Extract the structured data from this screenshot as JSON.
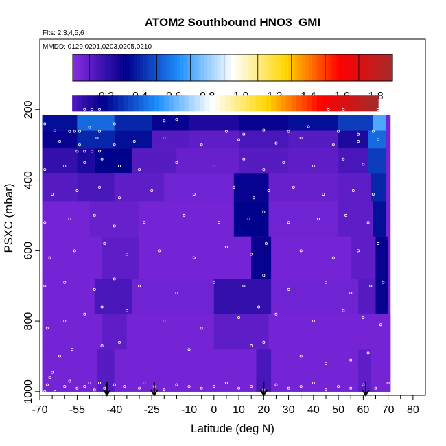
{
  "chart_data": {
    "type": "heatmap",
    "title": "ATOM2 Southbound HNO3_GMI",
    "subtitle_flights": "Flts: 2,3,4,5,6",
    "subtitle_dates": "MMDD: 0129,0201,0203,0205,0210",
    "xlabel": "Latitude (deg N)",
    "ylabel": "PSXC (mbar)",
    "xlim": [
      -70,
      85
    ],
    "ylim": [
      1010,
      0
    ],
    "x_ticks": [
      -70,
      -55,
      -40,
      -25,
      -10,
      0,
      10,
      20,
      30,
      40,
      50,
      60,
      70,
      80
    ],
    "x_tick_labels": [
      "-70",
      "-55",
      "-40",
      "-25",
      "-10",
      "0",
      "10",
      "20",
      "30",
      "40",
      "50",
      "60",
      "70",
      "80"
    ],
    "x_minor_ticks": [
      -65,
      -60,
      -50,
      -45,
      -35,
      -30,
      -20,
      -15,
      -5,
      5,
      15,
      25,
      35,
      45,
      55,
      65,
      75
    ],
    "y_ticks": [
      200,
      400,
      600,
      800,
      1000
    ],
    "y_tick_labels": [
      "200",
      "400",
      "600",
      "800",
      "1000"
    ],
    "colorbar": {
      "range": [
        0,
        1.9
      ],
      "ticks": [
        0.2,
        0.4,
        0.6,
        0.8,
        1.0,
        1.2,
        1.4,
        1.6,
        1.8
      ],
      "tick_labels": [
        "0.2",
        "0.4",
        "0.6",
        "0.8",
        "1.0",
        "1.2",
        "1.4",
        "1.6",
        "1.8"
      ],
      "colors": [
        "#8a2be2",
        "#00008b",
        "#1e90ff",
        "#ffffff",
        "#ffd700",
        "#ff0000",
        "#a52a2a"
      ]
    },
    "arrows_lat": [
      -43,
      -24,
      20,
      61
    ],
    "data_extent": {
      "lat_min": -69,
      "lat_max": 71,
      "p_top": 215,
      "p_bottom": 1000
    },
    "cells": [
      {
        "lat": [
          -69,
          -55
        ],
        "p": [
          215,
          260
        ],
        "v": 0.35
      },
      {
        "lat": [
          -55,
          -40
        ],
        "p": [
          215,
          260
        ],
        "v": 0.55
      },
      {
        "lat": [
          -40,
          -25
        ],
        "p": [
          215,
          260
        ],
        "v": 0.4
      },
      {
        "lat": [
          -25,
          -10
        ],
        "p": [
          215,
          260
        ],
        "v": 0.3
      },
      {
        "lat": [
          -10,
          10
        ],
        "p": [
          215,
          260
        ],
        "v": 0.25
      },
      {
        "lat": [
          10,
          30
        ],
        "p": [
          215,
          260
        ],
        "v": 0.3
      },
      {
        "lat": [
          30,
          50
        ],
        "p": [
          215,
          260
        ],
        "v": 0.35
      },
      {
        "lat": [
          50,
          64
        ],
        "p": [
          215,
          260
        ],
        "v": 0.45
      },
      {
        "lat": [
          64,
          69
        ],
        "p": [
          215,
          260
        ],
        "v": 0.7
      },
      {
        "lat": [
          -69,
          -55
        ],
        "p": [
          260,
          310
        ],
        "v": 0.3
      },
      {
        "lat": [
          -55,
          -40
        ],
        "p": [
          260,
          310
        ],
        "v": 0.4
      },
      {
        "lat": [
          -40,
          -25
        ],
        "p": [
          260,
          310
        ],
        "v": 0.35
      },
      {
        "lat": [
          -25,
          -10
        ],
        "p": [
          260,
          310
        ],
        "v": 0.12
      },
      {
        "lat": [
          -10,
          10
        ],
        "p": [
          260,
          310
        ],
        "v": 0.1
      },
      {
        "lat": [
          10,
          30
        ],
        "p": [
          260,
          310
        ],
        "v": 0.15
      },
      {
        "lat": [
          30,
          50
        ],
        "p": [
          260,
          310
        ],
        "v": 0.12
      },
      {
        "lat": [
          50,
          62
        ],
        "p": [
          260,
          310
        ],
        "v": 0.25
      },
      {
        "lat": [
          62,
          69
        ],
        "p": [
          260,
          310
        ],
        "v": 0.55
      },
      {
        "lat": [
          -69,
          -55
        ],
        "p": [
          310,
          380
        ],
        "v": 0.2
      },
      {
        "lat": [
          -55,
          -48
        ],
        "p": [
          310,
          380
        ],
        "v": 0.25
      },
      {
        "lat": [
          -48,
          -33
        ],
        "p": [
          310,
          380
        ],
        "v": 0.32
      },
      {
        "lat": [
          -33,
          -15
        ],
        "p": [
          310,
          380
        ],
        "v": 0.12
      },
      {
        "lat": [
          -15,
          10
        ],
        "p": [
          310,
          380
        ],
        "v": 0.08
      },
      {
        "lat": [
          10,
          30
        ],
        "p": [
          310,
          380
        ],
        "v": 0.12
      },
      {
        "lat": [
          30,
          50
        ],
        "p": [
          310,
          380
        ],
        "v": 0.1
      },
      {
        "lat": [
          50,
          62
        ],
        "p": [
          310,
          380
        ],
        "v": 0.15
      },
      {
        "lat": [
          62,
          69
        ],
        "p": [
          310,
          380
        ],
        "v": 0.45
      },
      {
        "lat": [
          -69,
          -55
        ],
        "p": [
          380,
          460
        ],
        "v": 0.12
      },
      {
        "lat": [
          -55,
          -40
        ],
        "p": [
          380,
          460
        ],
        "v": 0.15
      },
      {
        "lat": [
          -40,
          -20
        ],
        "p": [
          380,
          460
        ],
        "v": 0.1
      },
      {
        "lat": [
          -20,
          8
        ],
        "p": [
          380,
          460
        ],
        "v": 0.06
      },
      {
        "lat": [
          8,
          22
        ],
        "p": [
          380,
          460
        ],
        "v": 0.3
      },
      {
        "lat": [
          22,
          50
        ],
        "p": [
          380,
          460
        ],
        "v": 0.08
      },
      {
        "lat": [
          50,
          63
        ],
        "p": [
          380,
          460
        ],
        "v": 0.1
      },
      {
        "lat": [
          63,
          69
        ],
        "p": [
          380,
          460
        ],
        "v": 0.4
      },
      {
        "lat": [
          -69,
          -50
        ],
        "p": [
          460,
          560
        ],
        "v": 0.05
      },
      {
        "lat": [
          -50,
          -30
        ],
        "p": [
          460,
          560
        ],
        "v": 0.08
      },
      {
        "lat": [
          -30,
          8
        ],
        "p": [
          460,
          560
        ],
        "v": 0.05
      },
      {
        "lat": [
          8,
          22
        ],
        "p": [
          460,
          560
        ],
        "v": 0.32
      },
      {
        "lat": [
          22,
          50
        ],
        "p": [
          460,
          560
        ],
        "v": 0.06
      },
      {
        "lat": [
          50,
          64
        ],
        "p": [
          460,
          560
        ],
        "v": 0.1
      },
      {
        "lat": [
          64,
          69
        ],
        "p": [
          460,
          560
        ],
        "v": 0.35
      },
      {
        "lat": [
          -69,
          -45
        ],
        "p": [
          560,
          680
        ],
        "v": 0.05
      },
      {
        "lat": [
          -45,
          -30
        ],
        "p": [
          560,
          680
        ],
        "v": 0.1
      },
      {
        "lat": [
          -30,
          15
        ],
        "p": [
          560,
          680
        ],
        "v": 0.05
      },
      {
        "lat": [
          15,
          23
        ],
        "p": [
          560,
          680
        ],
        "v": 0.3
      },
      {
        "lat": [
          23,
          55
        ],
        "p": [
          560,
          680
        ],
        "v": 0.05
      },
      {
        "lat": [
          55,
          65
        ],
        "p": [
          560,
          680
        ],
        "v": 0.1
      },
      {
        "lat": [
          65,
          70
        ],
        "p": [
          560,
          680
        ],
        "v": 0.3
      },
      {
        "lat": [
          -69,
          -48
        ],
        "p": [
          680,
          780
        ],
        "v": 0.05
      },
      {
        "lat": [
          -48,
          -33
        ],
        "p": [
          680,
          780
        ],
        "v": 0.15
      },
      {
        "lat": [
          -33,
          0
        ],
        "p": [
          680,
          780
        ],
        "v": 0.06
      },
      {
        "lat": [
          0,
          23
        ],
        "p": [
          680,
          780
        ],
        "v": 0.2
      },
      {
        "lat": [
          23,
          58
        ],
        "p": [
          680,
          780
        ],
        "v": 0.06
      },
      {
        "lat": [
          58,
          65
        ],
        "p": [
          680,
          780
        ],
        "v": 0.12
      },
      {
        "lat": [
          65,
          70
        ],
        "p": [
          680,
          780
        ],
        "v": 0.3
      },
      {
        "lat": [
          -69,
          -45
        ],
        "p": [
          780,
          880
        ],
        "v": 0.05
      },
      {
        "lat": [
          -45,
          -35
        ],
        "p": [
          780,
          880
        ],
        "v": 0.1
      },
      {
        "lat": [
          -35,
          0
        ],
        "p": [
          780,
          880
        ],
        "v": 0.05
      },
      {
        "lat": [
          0,
          22
        ],
        "p": [
          780,
          880
        ],
        "v": 0.1
      },
      {
        "lat": [
          22,
          71
        ],
        "p": [
          780,
          880
        ],
        "v": 0.05
      },
      {
        "lat": [
          -69,
          -47
        ],
        "p": [
          880,
          1000
        ],
        "v": 0.05
      },
      {
        "lat": [
          -47,
          -40
        ],
        "p": [
          880,
          1000
        ],
        "v": 0.12
      },
      {
        "lat": [
          -40,
          17
        ],
        "p": [
          880,
          1000
        ],
        "v": 0.05
      },
      {
        "lat": [
          17,
          23
        ],
        "p": [
          880,
          1000
        ],
        "v": 0.15
      },
      {
        "lat": [
          23,
          58
        ],
        "p": [
          880,
          1000
        ],
        "v": 0.05
      },
      {
        "lat": [
          58,
          63
        ],
        "p": [
          880,
          1000
        ],
        "v": 0.1
      },
      {
        "lat": [
          63,
          71
        ],
        "p": [
          880,
          1000
        ],
        "v": 0.05
      }
    ],
    "observations": [
      [
        -68,
        1000
      ],
      [
        -67,
        980
      ],
      [
        -66,
        960
      ],
      [
        -65,
        945
      ],
      [
        -64,
        1000
      ],
      [
        -60,
        985
      ],
      [
        -58,
        970
      ],
      [
        -55,
        990
      ],
      [
        -52,
        985
      ],
      [
        -50,
        975
      ],
      [
        -48,
        995
      ],
      [
        -46,
        975
      ],
      [
        -44,
        990
      ],
      [
        -40,
        980
      ],
      [
        -36,
        985
      ],
      [
        -30,
        990
      ],
      [
        -28,
        975
      ],
      [
        -24,
        985
      ],
      [
        -20,
        995
      ],
      [
        -15,
        980
      ],
      [
        -10,
        985
      ],
      [
        -5,
        990
      ],
      [
        0,
        985
      ],
      [
        5,
        975
      ],
      [
        10,
        990
      ],
      [
        15,
        985
      ],
      [
        20,
        995
      ],
      [
        25,
        980
      ],
      [
        30,
        990
      ],
      [
        35,
        985
      ],
      [
        40,
        975
      ],
      [
        45,
        995
      ],
      [
        50,
        985
      ],
      [
        55,
        990
      ],
      [
        60,
        980
      ],
      [
        65,
        990
      ],
      [
        70,
        975
      ],
      [
        -62,
        900
      ],
      [
        -57,
        880
      ],
      [
        -45,
        870
      ],
      [
        -38,
        860
      ],
      [
        -10,
        880
      ],
      [
        15,
        870
      ],
      [
        20,
        860
      ],
      [
        35,
        900
      ],
      [
        45,
        920
      ],
      [
        55,
        910
      ],
      [
        62,
        890
      ],
      [
        -67,
        820
      ],
      [
        -60,
        800
      ],
      [
        -52,
        780
      ],
      [
        -45,
        760
      ],
      [
        -35,
        770
      ],
      [
        -20,
        800
      ],
      [
        -5,
        820
      ],
      [
        10,
        790
      ],
      [
        18,
        760
      ],
      [
        25,
        780
      ],
      [
        40,
        800
      ],
      [
        52,
        770
      ],
      [
        60,
        790
      ],
      [
        67,
        810
      ],
      [
        -68,
        700
      ],
      [
        -60,
        690
      ],
      [
        -48,
        710
      ],
      [
        -40,
        680
      ],
      [
        -30,
        700
      ],
      [
        -15,
        720
      ],
      [
        0,
        690
      ],
      [
        12,
        700
      ],
      [
        20,
        670
      ],
      [
        30,
        710
      ],
      [
        45,
        690
      ],
      [
        55,
        720
      ],
      [
        63,
        700
      ],
      [
        68,
        690
      ],
      [
        -66,
        620
      ],
      [
        -56,
        600
      ],
      [
        -44,
        580
      ],
      [
        -35,
        610
      ],
      [
        -22,
        600
      ],
      [
        -8,
        620
      ],
      [
        5,
        590
      ],
      [
        15,
        610
      ],
      [
        21,
        580
      ],
      [
        35,
        600
      ],
      [
        48,
        620
      ],
      [
        58,
        600
      ],
      [
        66,
        580
      ],
      [
        -68,
        520
      ],
      [
        -58,
        510
      ],
      [
        -48,
        500
      ],
      [
        -40,
        530
      ],
      [
        -28,
        520
      ],
      [
        -12,
        500
      ],
      [
        2,
        520
      ],
      [
        14,
        510
      ],
      [
        20,
        490
      ],
      [
        30,
        520
      ],
      [
        42,
        510
      ],
      [
        53,
        500
      ],
      [
        62,
        520
      ],
      [
        -65,
        440
      ],
      [
        -55,
        430
      ],
      [
        -46,
        420
      ],
      [
        -38,
        450
      ],
      [
        -25,
        430
      ],
      [
        -8,
        440
      ],
      [
        8,
        420
      ],
      [
        16,
        450
      ],
      [
        22,
        430
      ],
      [
        32,
        420
      ],
      [
        44,
        440
      ],
      [
        56,
        430
      ],
      [
        64,
        440
      ],
      [
        -68,
        370
      ],
      [
        -60,
        360
      ],
      [
        -52,
        350
      ],
      [
        -45,
        340
      ],
      [
        -38,
        360
      ],
      [
        -30,
        370
      ],
      [
        -15,
        350
      ],
      [
        0,
        360
      ],
      [
        12,
        340
      ],
      [
        20,
        370
      ],
      [
        28,
        350
      ],
      [
        40,
        360
      ],
      [
        52,
        340
      ],
      [
        60,
        355
      ],
      [
        -62,
        290
      ],
      [
        -54,
        300
      ],
      [
        -47,
        280
      ],
      [
        -40,
        300
      ],
      [
        -32,
        290
      ],
      [
        -20,
        280
      ],
      [
        -5,
        300
      ],
      [
        10,
        285
      ],
      [
        25,
        295
      ],
      [
        35,
        280
      ],
      [
        48,
        300
      ],
      [
        58,
        290
      ],
      [
        66,
        285
      ],
      [
        -68,
        240
      ],
      [
        -64,
        260
      ],
      [
        -58,
        262
      ],
      [
        -50,
        250
      ],
      [
        -46,
        262
      ],
      [
        -40,
        240
      ],
      [
        -20,
        232
      ],
      [
        -15,
        228
      ],
      [
        5,
        262
      ],
      [
        12,
        270
      ],
      [
        20,
        258
      ],
      [
        30,
        262
      ],
      [
        38,
        248
      ],
      [
        50,
        262
      ],
      [
        58,
        270
      ],
      [
        64,
        262
      ],
      [
        -55,
        318
      ],
      [
        -52,
        318
      ],
      [
        -49,
        318
      ],
      [
        -46,
        318
      ],
      [
        -58,
        262
      ],
      [
        -56,
        262
      ],
      [
        -54,
        262
      ],
      [
        -52,
        200
      ],
      [
        -49,
        200
      ],
      [
        -46,
        200
      ],
      [
        46,
        200
      ],
      [
        52,
        200
      ],
      [
        66,
        200
      ],
      [
        -70,
        240
      ]
    ]
  }
}
